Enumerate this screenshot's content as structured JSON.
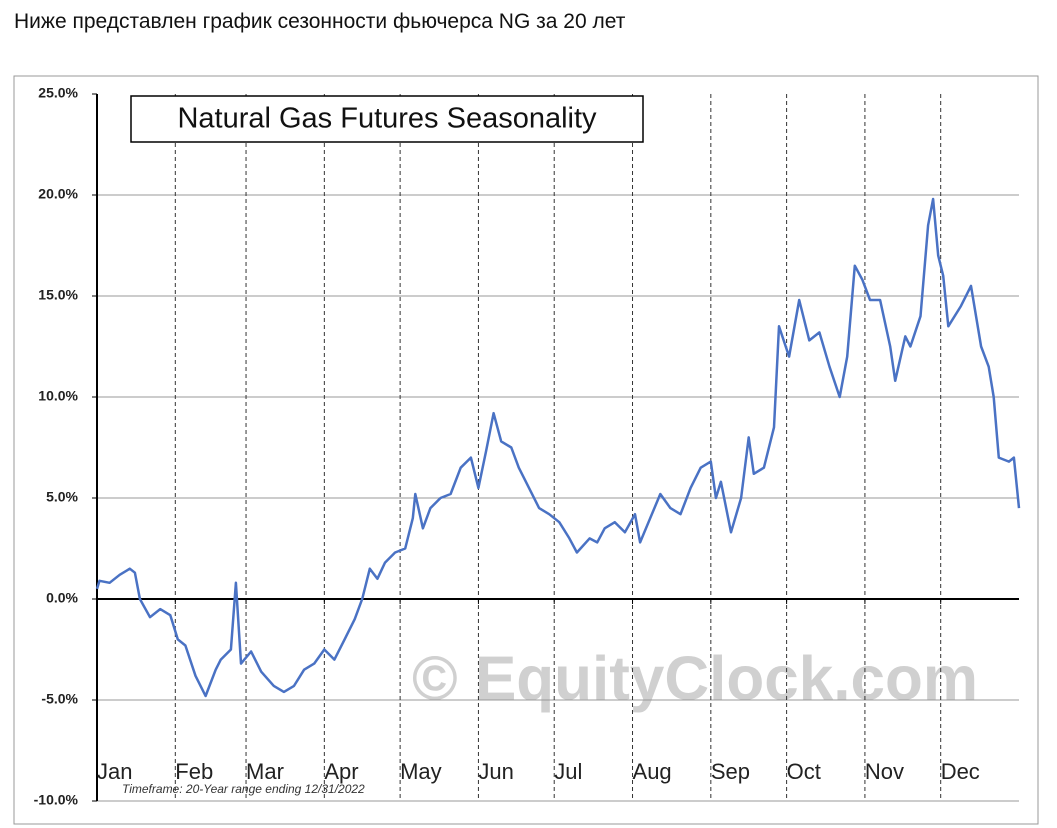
{
  "header": {
    "text": "Ниже представлен график сезонности фьючерса NG за 20 лет"
  },
  "chart_data": {
    "type": "line",
    "title": "Natural Gas Futures Seasonality",
    "watermark": "© EquityClock.com",
    "footnote": "Timeframe: 20-Year range ending 12/31/2022",
    "color": "#4a72c4",
    "grid": true,
    "xlim": [
      0,
      365
    ],
    "xticks": [
      {
        "value": 0,
        "label": "Jan"
      },
      {
        "value": 31,
        "label": "Feb"
      },
      {
        "value": 59,
        "label": "Mar"
      },
      {
        "value": 90,
        "label": "Apr"
      },
      {
        "value": 120,
        "label": "May"
      },
      {
        "value": 151,
        "label": "Jun"
      },
      {
        "value": 181,
        "label": "Jul"
      },
      {
        "value": 212,
        "label": "Aug"
      },
      {
        "value": 243,
        "label": "Sep"
      },
      {
        "value": 273,
        "label": "Oct"
      },
      {
        "value": 304,
        "label": "Nov"
      },
      {
        "value": 334,
        "label": "Dec"
      }
    ],
    "ylim": [
      -10,
      25
    ],
    "yticks": [
      {
        "value": -10,
        "label": "-10.0%"
      },
      {
        "value": -5,
        "label": "-5.0%"
      },
      {
        "value": 0,
        "label": "0.0%"
      },
      {
        "value": 5,
        "label": "5.0%"
      },
      {
        "value": 10,
        "label": "10.0%"
      },
      {
        "value": 15,
        "label": "15.0%"
      },
      {
        "value": 20,
        "label": "20.0%"
      },
      {
        "value": 25,
        "label": "25.0%"
      }
    ],
    "x": [
      0,
      1,
      5,
      9,
      13,
      15,
      17,
      21,
      25,
      29,
      32,
      35,
      39,
      43,
      47,
      49,
      53,
      55,
      57,
      61,
      65,
      70,
      74,
      78,
      82,
      86,
      90,
      94,
      98,
      102,
      105,
      108,
      111,
      114,
      118,
      122,
      125,
      126,
      129,
      132,
      136,
      140,
      144,
      148,
      151,
      154,
      157,
      160,
      164,
      167,
      171,
      175,
      179,
      183,
      187,
      190,
      195,
      198,
      201,
      205,
      209,
      213,
      215,
      219,
      223,
      227,
      231,
      235,
      239,
      243,
      245,
      247,
      251,
      255,
      258,
      260,
      264,
      268,
      270,
      274,
      278,
      282,
      286,
      290,
      294,
      297,
      300,
      303,
      306,
      310,
      314,
      316,
      320,
      322,
      326,
      329,
      331,
      333,
      335,
      337,
      342,
      346,
      350,
      353,
      355,
      357,
      361,
      363,
      365
    ],
    "values": [
      0.5,
      0.9,
      0.8,
      1.2,
      1.5,
      1.3,
      0,
      -0.9,
      -0.5,
      -0.8,
      -2,
      -2.3,
      -3.8,
      -4.8,
      -3.5,
      -3,
      -2.5,
      0.8,
      -3.2,
      -2.6,
      -3.6,
      -4.3,
      -4.6,
      -4.3,
      -3.5,
      -3.2,
      -2.5,
      -3,
      -2,
      -1,
      0,
      1.5,
      1,
      1.8,
      2.3,
      2.5,
      4,
      5.2,
      3.5,
      4.5,
      5,
      5.2,
      6.5,
      7,
      5.5,
      7.3,
      9.2,
      7.8,
      7.5,
      6.5,
      5.5,
      4.5,
      4.2,
      3.8,
      3,
      2.3,
      3,
      2.8,
      3.5,
      3.8,
      3.3,
      4.2,
      2.8,
      4,
      5.2,
      4.5,
      4.2,
      5.5,
      6.5,
      6.8,
      5,
      5.8,
      3.3,
      5,
      8,
      6.2,
      6.5,
      8.5,
      13.5,
      12,
      14.8,
      12.8,
      13.2,
      11.5,
      10,
      12,
      16.5,
      15.8,
      14.8,
      14.8,
      12.5,
      10.8,
      13,
      12.5,
      14,
      18.5,
      19.8,
      17,
      16,
      13.5,
      14.5,
      15.5,
      12.5,
      11.5,
      10,
      7,
      6.8,
      7,
      4.5
    ]
  }
}
